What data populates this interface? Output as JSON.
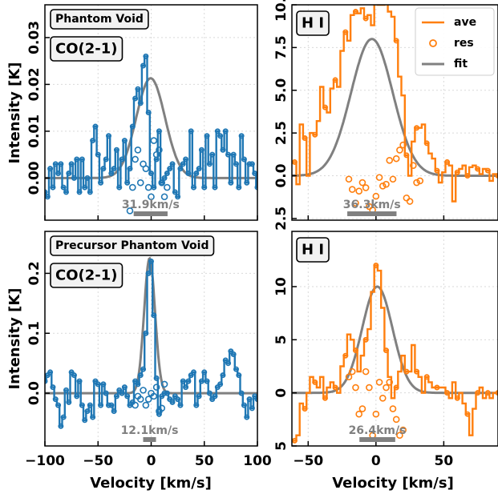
{
  "colors": {
    "co": "#1f77b4",
    "hi": "#ff7f0e",
    "fit": "#808080",
    "grid": "#d9d9d9"
  },
  "legend": {
    "entries": [
      "ave",
      "res",
      "fit"
    ],
    "placement": "top-right",
    "panel": 1
  },
  "shared_labels": {
    "xlabel": "Velocity [km/s]",
    "ylabel": "Intensity [K]"
  },
  "chart_data": [
    {
      "type": "line",
      "panel": "top-left",
      "region_label": "Phantom Void",
      "line_label": "CO(2-1)",
      "scale_bar": {
        "label": "31.9km/s",
        "width_kms": 31.9,
        "center": -0.5
      },
      "xlim": [
        -100,
        100
      ],
      "ylim": [
        -0.009,
        0.037
      ],
      "yticks": [
        0.0,
        0.01,
        0.02,
        0.03
      ],
      "ytick_labels": [
        "0.00",
        "0.01",
        "0.02",
        "0.03"
      ],
      "xticks": [
        -100,
        -50,
        0,
        50,
        100
      ],
      "x": [
        -100,
        -97.5,
        -95,
        -92.5,
        -90,
        -87.5,
        -85,
        -82.5,
        -80,
        -77.5,
        -75,
        -72.5,
        -70,
        -67.5,
        -65,
        -62.5,
        -60,
        -57.5,
        -55,
        -52.5,
        -50,
        -47.5,
        -45,
        -42.5,
        -40,
        -37.5,
        -35,
        -32.5,
        -30,
        -27.5,
        -25,
        -22.5,
        -20,
        -17.5,
        -15,
        -12.5,
        -10,
        -7.5,
        -5,
        -2.5,
        0,
        2.5,
        5,
        7.5,
        10,
        12.5,
        15,
        17.5,
        20,
        22.5,
        25,
        27.5,
        30,
        32.5,
        35,
        37.5,
        40,
        42.5,
        45,
        47.5,
        50,
        52.5,
        55,
        57.5,
        60,
        62.5,
        65,
        67.5,
        70,
        72.5,
        75,
        77.5,
        80,
        82.5,
        85,
        87.5,
        90,
        92.5,
        95,
        97.5,
        100
      ],
      "series": [
        {
          "role": "ave",
          "values": [
            -0.003,
            -0.004,
            0.002,
            -0.002,
            0.003,
            0.001,
            0.003,
            -0.002,
            -0.003,
            0.001,
            0.003,
            0.0,
            0.004,
            -0.003,
            0.004,
            -0.002,
            0.0,
            -0.003,
            0.008,
            0.011,
            0.005,
            -0.001,
            0.002,
            0.004,
            0.009,
            0.001,
            0.002,
            0.006,
            -0.002,
            0.004,
            0.008,
            -0.001,
            0.002,
            0.011,
            0.017,
            0.019,
            0.016,
            0.024,
            0.026,
            0.014,
            0.001,
            -0.002,
            0.004,
            0.01,
            -0.001,
            0.0,
            0.001,
            0.002,
            0.003,
            -0.003,
            -0.004,
            0.002,
            0.003,
            0.004,
            0.001,
            0.01,
            -0.002,
            0.001,
            0.002,
            0.006,
            -0.002,
            0.009,
            0.003,
            0.005,
            -0.002,
            0.01,
            0.009,
            0.006,
            0.01,
            0.005,
            -0.001,
            0.005,
            0.003,
            -0.002,
            0.009,
            0.004,
            -0.001,
            0.003,
            0.003,
            0.001,
            -0.002
          ]
        },
        {
          "role": "res",
          "values": [
            null,
            null,
            null,
            null,
            null,
            null,
            null,
            null,
            null,
            null,
            null,
            null,
            null,
            null,
            null,
            null,
            null,
            null,
            null,
            null,
            null,
            null,
            null,
            null,
            null,
            null,
            null,
            null,
            null,
            null,
            null,
            null,
            -0.007,
            -0.002,
            0.004,
            0.006,
            -0.001,
            0.003,
            0.002,
            -0.002,
            -0.004,
            0.008,
            0.005,
            0.006,
            -0.001,
            -0.004,
            -0.002,
            null,
            null,
            null,
            null,
            null,
            null,
            null,
            null,
            null,
            null,
            null,
            null,
            null,
            null,
            null,
            null,
            null,
            null,
            null,
            null,
            null,
            null,
            null,
            null,
            null,
            null,
            null,
            null,
            null,
            null,
            null,
            null,
            null,
            null
          ]
        },
        {
          "role": "fit",
          "gaussian": {
            "amplitude": 0.0213,
            "center": -0.5,
            "fwhm": 31.9
          }
        }
      ]
    },
    {
      "type": "line",
      "panel": "top-right",
      "line_label": "H I",
      "scale_bar": {
        "label": "36.3km/s",
        "width_kms": 36.3,
        "center": -3
      },
      "xlim": [
        -62,
        90
      ],
      "ylim": [
        -2.6,
        10.0
      ],
      "yticks": [
        -2.5,
        0.0,
        2.5,
        5.0,
        7.5,
        10.0
      ],
      "ytick_labels": [
        "2.5",
        "0.0",
        "2.5",
        "5.0",
        "7.5",
        "10.0"
      ],
      "xticks": [
        -50,
        0,
        50
      ],
      "x": [
        -60,
        -57.5,
        -55,
        -52.5,
        -50,
        -47.5,
        -45,
        -42.5,
        -40,
        -37.5,
        -35,
        -32.5,
        -30,
        -27.5,
        -25,
        -22.5,
        -20,
        -17.5,
        -15,
        -12.5,
        -10,
        -7.5,
        -5,
        -2.5,
        0,
        2.5,
        5,
        7.5,
        10,
        12.5,
        15,
        17.5,
        20,
        22.5,
        25,
        27.5,
        30,
        32.5,
        35,
        37.5,
        40,
        42.5,
        45,
        47.5,
        50,
        52.5,
        55,
        57.5,
        60,
        62.5,
        65,
        67.5,
        70,
        72.5,
        75,
        77.5,
        80,
        82.5,
        85,
        87.5,
        90
      ],
      "series": [
        {
          "role": "ave",
          "values": [
            0.8,
            -0.5,
            3.0,
            2.2,
            0.0,
            2.5,
            2.4,
            3.2,
            5.2,
            4.0,
            3.7,
            5.1,
            5.6,
            5.2,
            7.3,
            8.4,
            7.9,
            9.4,
            9.6,
            9.5,
            9.8,
            9.2,
            9.4,
            8.8,
            10.4,
            10.0,
            10.0,
            10.8,
            9.6,
            9.3,
            7.9,
            5.8,
            4.7,
            1.2,
            0.0,
            2.0,
            2.8,
            2.8,
            3.0,
            1.9,
            1.3,
            1.0,
            0.3,
            -0.4,
            0.2,
            0.8,
            0.6,
            -1.5,
            0.2,
            0.4,
            0.6,
            0.0,
            0.5,
            0.6,
            0.4,
            0.1,
            0.4,
            0.3,
            -0.3,
            0.1,
            0.0
          ]
        },
        {
          "role": "res",
          "values": [
            null,
            null,
            null,
            null,
            null,
            null,
            null,
            null,
            null,
            null,
            null,
            null,
            null,
            null,
            null,
            null,
            -0.2,
            -0.8,
            -1.6,
            -0.9,
            -0.4,
            -0.7,
            -1.8,
            -2.0,
            -1.2,
            -0.1,
            -0.6,
            -0.5,
            0.9,
            -0.2,
            1.0,
            1.5,
            1.8,
            -1.3,
            -1.5,
            0.6,
            -0.4,
            -0.3,
            null,
            null,
            null,
            null,
            null,
            null,
            null,
            null,
            null,
            null,
            null,
            null,
            null,
            null,
            null,
            null,
            null,
            null,
            null,
            null,
            null,
            null,
            null
          ]
        },
        {
          "role": "fit",
          "gaussian": {
            "amplitude": 8.0,
            "center": -3,
            "fwhm": 36.3
          }
        }
      ]
    },
    {
      "type": "line",
      "panel": "bottom-left",
      "region_label": "Precursor Phantom Void",
      "line_label": "CO(2-1)",
      "scale_bar": {
        "label": "12.1km/s",
        "width_kms": 12.1,
        "center": -1.5
      },
      "xlim": [
        -100,
        100
      ],
      "ylim": [
        -0.088,
        0.27
      ],
      "yticks": [
        0.0,
        0.1,
        0.2
      ],
      "ytick_labels": [
        "0.0",
        "0.1",
        "0.2"
      ],
      "xticks": [
        -100,
        -50,
        0,
        50,
        100
      ],
      "xtick_labels": [
        "−100",
        "−50",
        "0",
        "50",
        "100"
      ],
      "x": [
        -100,
        -97.5,
        -95,
        -92.5,
        -90,
        -87.5,
        -85,
        -82.5,
        -80,
        -77.5,
        -75,
        -72.5,
        -70,
        -67.5,
        -65,
        -62.5,
        -60,
        -57.5,
        -55,
        -52.5,
        -50,
        -47.5,
        -45,
        -42.5,
        -40,
        -37.5,
        -35,
        -32.5,
        -30,
        -27.5,
        -25,
        -22.5,
        -20,
        -17.5,
        -15,
        -12.5,
        -10,
        -7.5,
        -5,
        -2.5,
        0,
        2.5,
        5,
        7.5,
        10,
        12.5,
        15,
        17.5,
        20,
        22.5,
        25,
        27.5,
        30,
        32.5,
        35,
        37.5,
        40,
        42.5,
        45,
        47.5,
        50,
        52.5,
        55,
        57.5,
        60,
        62.5,
        65,
        67.5,
        70,
        72.5,
        75,
        77.5,
        80,
        82.5,
        85,
        87.5,
        90,
        92.5,
        95,
        97.5,
        100
      ],
      "series": [
        {
          "role": "ave",
          "values": [
            0.02,
            0.03,
            0.035,
            0.01,
            -0.01,
            -0.02,
            -0.055,
            -0.04,
            0.005,
            -0.015,
            0.035,
            0.03,
            -0.005,
            0.02,
            -0.02,
            -0.045,
            -0.03,
            -0.02,
            -0.04,
            0.02,
            0.015,
            -0.02,
            0.015,
            0.0,
            -0.02,
            -0.02,
            -0.03,
            -0.005,
            0.005,
            0.0,
            0.01,
            -0.005,
            -0.02,
            -0.015,
            0.02,
            0.015,
            0.03,
            0.04,
            0.1,
            0.2,
            0.22,
            0.13,
            0.025,
            -0.035,
            -0.005,
            0.0,
            0.0,
            -0.01,
            -0.015,
            -0.005,
            -0.01,
            -0.02,
            0.02,
            0.01,
            0.02,
            0.03,
            0.035,
            -0.02,
            -0.005,
            0.02,
            0.035,
            0.02,
            0.0,
            -0.01,
            -0.005,
            0.01,
            0.015,
            0.03,
            0.055,
            0.05,
            0.07,
            0.065,
            0.04,
            0.03,
            0.0,
            -0.02,
            -0.04,
            -0.01,
            -0.025,
            -0.005,
            -0.01
          ]
        },
        {
          "role": "res",
          "values": [
            null,
            null,
            null,
            null,
            null,
            null,
            null,
            null,
            null,
            null,
            null,
            null,
            null,
            null,
            null,
            null,
            null,
            null,
            null,
            null,
            null,
            null,
            null,
            null,
            null,
            null,
            null,
            null,
            null,
            null,
            null,
            null,
            null,
            null,
            -0.02,
            -0.005,
            -0.01,
            0.005,
            -0.02,
            -0.01,
            0.0,
            -0.005,
            0.01,
            -0.03,
            -0.025,
            0.015,
            null,
            null,
            null,
            null,
            null,
            null,
            null,
            null,
            null,
            null,
            null,
            null,
            null,
            null,
            null,
            null,
            null,
            null,
            null,
            null,
            null,
            null,
            null,
            null,
            null,
            null,
            null,
            null,
            null,
            null,
            null,
            null,
            null,
            null,
            null
          ]
        },
        {
          "role": "fit",
          "gaussian": {
            "amplitude": 0.225,
            "center": -1.5,
            "fwhm": 12.1
          }
        }
      ]
    },
    {
      "type": "line",
      "panel": "bottom-right",
      "line_label": "H I",
      "scale_bar": {
        "label": "26.4km/s",
        "width_kms": 26.4,
        "center": 1
      },
      "xlim": [
        -62,
        90
      ],
      "ylim": [
        -5.0,
        15.2
      ],
      "yticks": [
        -5,
        0,
        5,
        10
      ],
      "ytick_labels": [
        "5",
        "0",
        "5",
        "10"
      ],
      "xticks": [
        -50,
        0,
        50
      ],
      "xtick_labels": [
        "−50",
        "0",
        "50"
      ],
      "x": [
        -60,
        -57.5,
        -55,
        -52.5,
        -50,
        -47.5,
        -45,
        -42.5,
        -40,
        -37.5,
        -35,
        -32.5,
        -30,
        -27.5,
        -25,
        -22.5,
        -20,
        -17.5,
        -15,
        -12.5,
        -10,
        -7.5,
        -5,
        -2.5,
        0,
        2.5,
        5,
        7.5,
        10,
        12.5,
        15,
        17.5,
        20,
        22.5,
        25,
        27.5,
        30,
        32.5,
        35,
        37.5,
        40,
        42.5,
        45,
        47.5,
        50,
        52.5,
        55,
        57.5,
        60,
        62.5,
        65,
        67.5,
        70,
        72.5,
        75,
        77.5,
        80,
        82.5,
        85,
        87.5,
        90
      ],
      "series": [
        {
          "role": "ave",
          "values": [
            -4.5,
            -4.0,
            -1.0,
            -1.5,
            0.0,
            1.5,
            1.0,
            0.5,
            1.5,
            -0.5,
            0.5,
            1.0,
            0.5,
            0.0,
            2.5,
            3.5,
            5.5,
            5.0,
            4.0,
            2.0,
            3.5,
            5.0,
            6.0,
            9.5,
            12.0,
            11.5,
            8.0,
            4.0,
            1.5,
            -0.5,
            0.5,
            2.0,
            3.5,
            2.0,
            2.0,
            4.5,
            2.0,
            1.5,
            0.0,
            1.5,
            1.0,
            0.5,
            0.5,
            0.5,
            0.5,
            0.0,
            -0.5,
            1.0,
            -0.5,
            0.0,
            -1.0,
            -2.0,
            -4.0,
            -1.5,
            0.0,
            0.5,
            -0.5,
            0.0,
            -0.5,
            0.0,
            0.0
          ]
        },
        {
          "role": "res",
          "values": [
            null,
            null,
            null,
            null,
            null,
            null,
            null,
            null,
            null,
            null,
            null,
            null,
            null,
            null,
            null,
            null,
            1.5,
            2.0,
            0.5,
            -2.0,
            -1.5,
            2.0,
            0.5,
            -4.0,
            -2.0,
            1.0,
            -0.5,
            0.5,
            1.0,
            -1.5,
            -2.5,
            -4.0,
            -3.5,
            null,
            null,
            null,
            null,
            null,
            null,
            null,
            null,
            null,
            null,
            null,
            null,
            null,
            null,
            null,
            null,
            null,
            null,
            null,
            null,
            null,
            null,
            null,
            null,
            null,
            null,
            null,
            null
          ]
        },
        {
          "role": "fit",
          "gaussian": {
            "amplitude": 10.0,
            "center": 1,
            "fwhm": 26.4
          }
        }
      ]
    }
  ]
}
